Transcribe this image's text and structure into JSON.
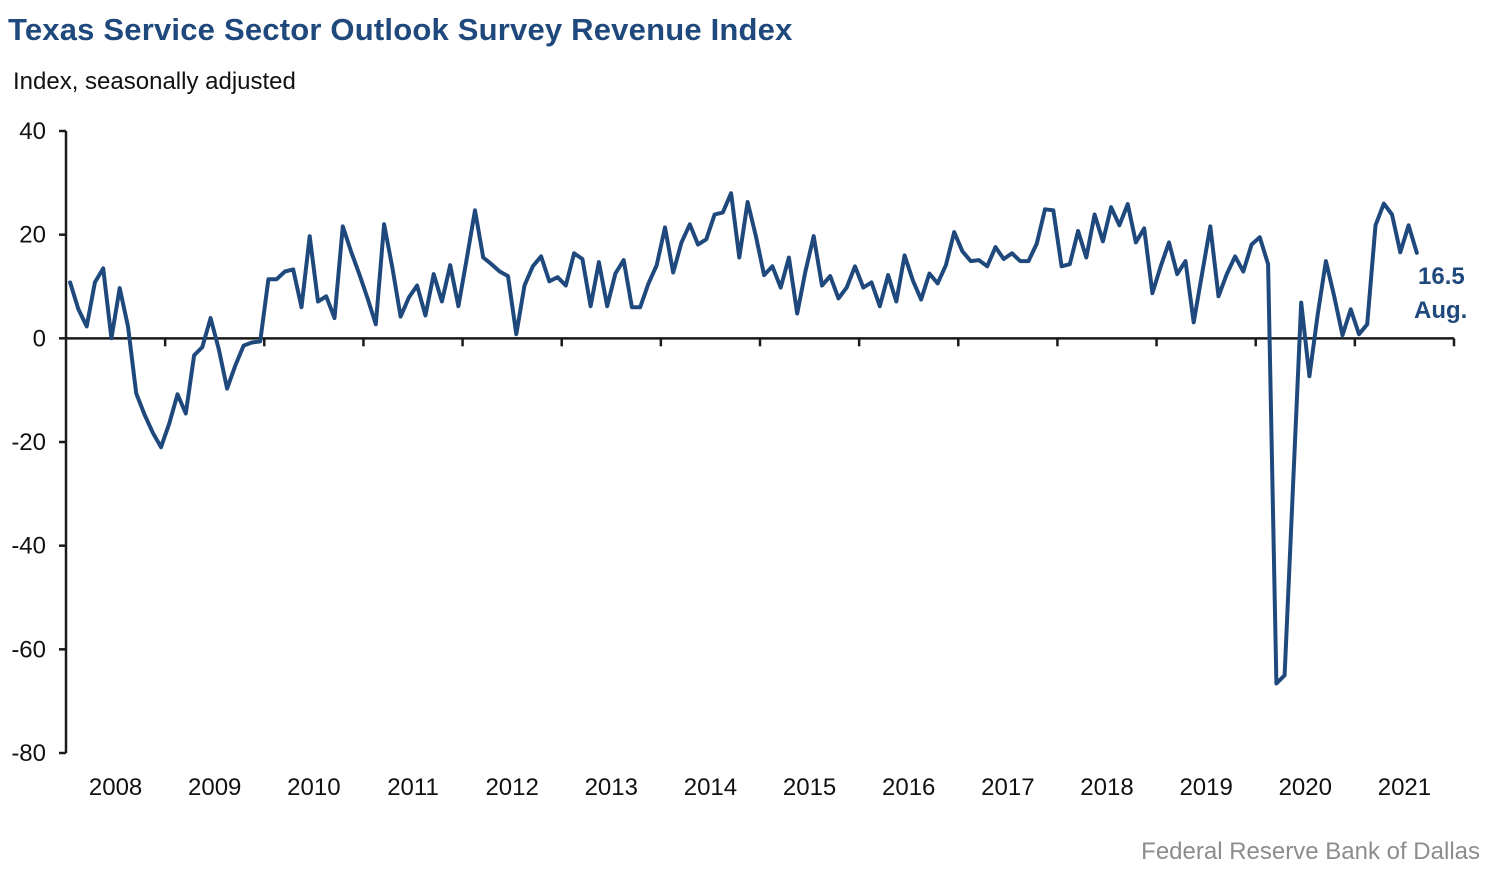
{
  "header": {
    "title": "Texas Service Sector Outlook Survey Revenue Index",
    "subtitle": "Index, seasonally adjusted"
  },
  "footer": {
    "source": "Federal Reserve Bank of Dallas"
  },
  "colors": {
    "title": "#1f497d",
    "line": "#1f497d",
    "axis": "#1a1a1a",
    "source": "#8c8c8c"
  },
  "chart_data": {
    "type": "line",
    "title": "Texas Service Sector Outlook Survey Revenue Index",
    "ylabel": "Index, seasonally adjusted",
    "xlabel": "",
    "ylim": [
      -80,
      40
    ],
    "yticks": [
      40,
      20,
      0,
      -20,
      -40,
      -60,
      -80
    ],
    "ytick_labels": [
      "40",
      "20",
      "0",
      "-20",
      "-40",
      "-60",
      "-80"
    ],
    "xlim": [
      "2008-01",
      "2021-12"
    ],
    "xtick_labels": [
      "2008",
      "2009",
      "2010",
      "2011",
      "2012",
      "2013",
      "2014",
      "2015",
      "2016",
      "2017",
      "2018",
      "2019",
      "2020",
      "2021"
    ],
    "grid": false,
    "legend": "none",
    "start": "2008-01",
    "frequency": "monthly",
    "annotation": {
      "value_label": "16.5",
      "month_label": "Aug."
    },
    "series": [
      {
        "name": "Revenue Index",
        "values": [
          10.8,
          5.6,
          2.3,
          10.8,
          13.5,
          0.0,
          9.7,
          2.3,
          -10.6,
          -14.7,
          -18.2,
          -21.0,
          -16.4,
          -10.8,
          -14.5,
          -3.3,
          -1.7,
          3.9,
          -2.1,
          -9.7,
          -5.2,
          -1.4,
          -0.8,
          -0.6,
          11.4,
          11.4,
          12.9,
          13.3,
          6.0,
          19.7,
          7.1,
          8.1,
          3.9,
          21.6,
          16.8,
          12.4,
          7.7,
          2.7,
          22.0,
          13.7,
          4.2,
          7.9,
          10.2,
          4.4,
          12.4,
          7.1,
          14.1,
          6.2,
          15.3,
          24.7,
          15.6,
          14.3,
          12.9,
          12.0,
          0.8,
          10.2,
          13.9,
          15.8,
          11.0,
          11.8,
          10.2,
          16.4,
          15.3,
          6.2,
          14.7,
          6.2,
          12.5,
          15.1,
          6.0,
          6.0,
          10.6,
          14.1,
          21.4,
          12.7,
          18.5,
          22.0,
          18.1,
          19.1,
          23.9,
          24.3,
          28.0,
          15.6,
          26.3,
          19.7,
          12.2,
          13.9,
          9.8,
          15.6,
          4.8,
          12.9,
          19.7,
          10.2,
          12.0,
          7.7,
          9.8,
          13.9,
          9.8,
          10.8,
          6.2,
          12.2,
          7.1,
          16.0,
          11.2,
          7.5,
          12.5,
          10.6,
          14.1,
          20.5,
          16.8,
          14.9,
          15.1,
          13.9,
          17.6,
          15.3,
          16.4,
          14.9,
          14.9,
          18.3,
          24.9,
          24.7,
          13.9,
          14.3,
          20.7,
          15.6,
          23.9,
          18.7,
          25.3,
          21.8,
          25.9,
          18.5,
          21.2,
          8.7,
          13.9,
          18.5,
          12.4,
          14.9,
          3.1,
          12.4,
          21.6,
          8.1,
          12.4,
          15.8,
          12.9,
          18.1,
          19.5,
          14.3,
          -66.6,
          -65.0,
          -29.0,
          6.9,
          -7.3,
          4.6,
          14.9,
          8.1,
          0.6,
          5.6,
          0.8,
          2.7,
          21.8,
          26.0,
          23.9,
          16.6,
          21.8,
          16.5
        ]
      }
    ]
  }
}
